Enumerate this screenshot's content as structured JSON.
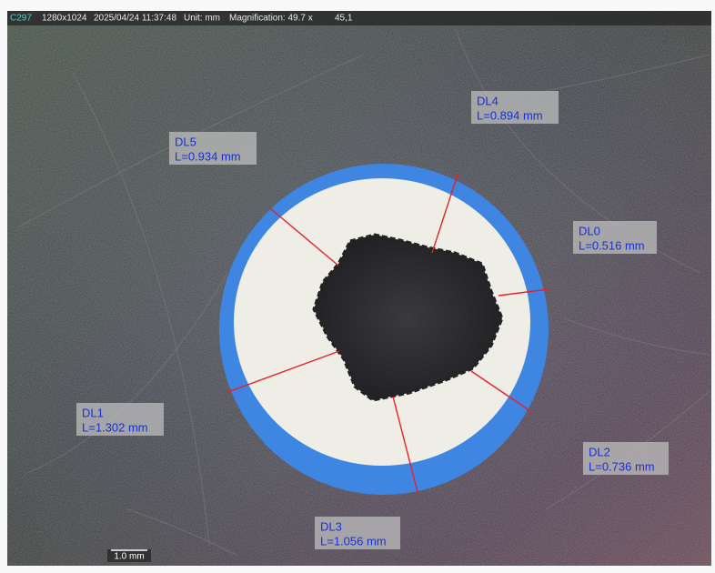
{
  "header": {
    "camera": "C297",
    "resolution": "1280x1024",
    "timestamp": "2025/04/24 11:37:48",
    "unit": "Unit: mm",
    "magnification": "Magnification:  49.7 x",
    "position": "45,1"
  },
  "measurements": [
    {
      "name": "DL0",
      "length": "L=0.516 mm"
    },
    {
      "name": "DL1",
      "length": "L=1.302 mm"
    },
    {
      "name": "DL2",
      "length": "L=0.736 mm"
    },
    {
      "name": "DL3",
      "length": "L=1.056 mm"
    },
    {
      "name": "DL4",
      "length": "L=0.894 mm"
    },
    {
      "name": "DL5",
      "length": "L=0.934 mm"
    }
  ],
  "scale_bar": "1.0 mm"
}
